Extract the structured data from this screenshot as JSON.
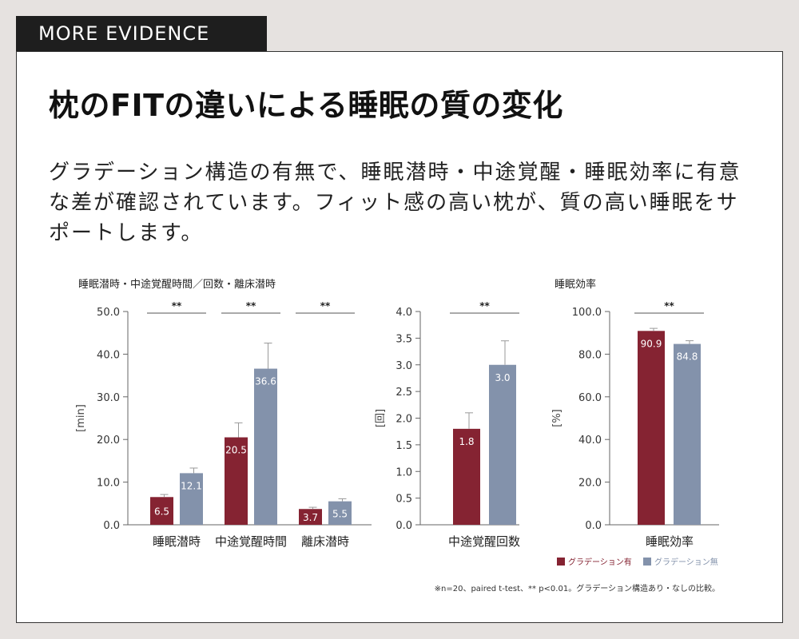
{
  "badge": "MORE EVIDENCE",
  "title": "枕のFITの違いによる睡眠の質の変化",
  "description": "グラデーション構造の有無で、睡眠潜時・中途覚醒・睡眠効率に有意な差が確認されています。フィット感の高い枕が、質の高い睡眠をサポートします。",
  "colors": {
    "with": "#852332",
    "without": "#8392ab"
  },
  "legend": {
    "with": "グラデーション有",
    "without": "グラデーション無"
  },
  "footnote": "※n=20、paired t-test、** p<0.01。グラデーション構造あり・なしの比較。",
  "chart_data": [
    {
      "type": "bar",
      "title": "睡眠潜時・中途覚醒時間／回数・離床潜時",
      "ylabel": "[min]",
      "ylim": [
        0,
        50
      ],
      "yticks": [
        "0.0",
        "10.0",
        "20.0",
        "30.0",
        "40.0",
        "50.0"
      ],
      "categories": [
        "睡眠潜時",
        "中途覚醒時間",
        "離床潜時"
      ],
      "significance": [
        "**",
        "**",
        "**"
      ],
      "series": [
        {
          "name": "グラデーション有",
          "values": [
            6.5,
            20.5,
            3.7
          ],
          "labels": [
            "6.5",
            "20.5",
            "3.7"
          ],
          "errors": [
            0.6,
            3.4,
            0.4
          ]
        },
        {
          "name": "グラデーション無",
          "values": [
            12.1,
            36.6,
            5.5
          ],
          "labels": [
            "12.1",
            "36.6",
            "5.5"
          ],
          "errors": [
            1.2,
            6.0,
            0.6
          ]
        }
      ]
    },
    {
      "type": "bar",
      "title": "",
      "ylabel": "[回]",
      "ylim": [
        0,
        4
      ],
      "yticks": [
        "0.0",
        "0.5",
        "1.0",
        "1.5",
        "2.0",
        "2.5",
        "3.0",
        "3.5",
        "4.0"
      ],
      "categories": [
        "中途覚醒回数"
      ],
      "significance": [
        "**"
      ],
      "series": [
        {
          "name": "グラデーション有",
          "values": [
            1.8
          ],
          "labels": [
            "1.8"
          ],
          "errors": [
            0.3
          ]
        },
        {
          "name": "グラデーション無",
          "values": [
            3.0
          ],
          "labels": [
            "3.0"
          ],
          "errors": [
            0.45
          ]
        }
      ]
    },
    {
      "type": "bar",
      "title": "睡眠効率",
      "ylabel": "[%]",
      "ylim": [
        0,
        100
      ],
      "yticks": [
        "0.0",
        "20.0",
        "40.0",
        "60.0",
        "80.0",
        "100.0"
      ],
      "categories": [
        "睡眠効率"
      ],
      "significance": [
        "**"
      ],
      "series": [
        {
          "name": "グラデーション有",
          "values": [
            90.9
          ],
          "labels": [
            "90.9"
          ],
          "errors": [
            1.2
          ]
        },
        {
          "name": "グラデーション無",
          "values": [
            84.8
          ],
          "labels": [
            "84.8"
          ],
          "errors": [
            1.5
          ]
        }
      ]
    }
  ]
}
